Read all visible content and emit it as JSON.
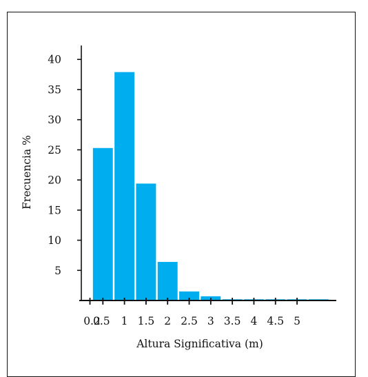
{
  "chart_data": {
    "type": "bar",
    "xlabel": "Altura Significativa (m)",
    "ylabel": "Frecuencia %",
    "x_tick_labels": [
      "0.2",
      "0.5",
      "1",
      "1.5",
      "2",
      "2.5",
      "3",
      "3.5",
      "4",
      "4.5",
      "5"
    ],
    "y_ticks": [
      5,
      10,
      15,
      20,
      25,
      30,
      35,
      40
    ],
    "ylim": [
      0,
      43
    ],
    "xlim": [
      0,
      5.75
    ],
    "bin_width": 0.5,
    "bars": [
      {
        "bin": [
          0.25,
          0.75
        ],
        "value": 25.3
      },
      {
        "bin": [
          0.75,
          1.25
        ],
        "value": 37.9
      },
      {
        "bin": [
          1.25,
          1.75
        ],
        "value": 19.4
      },
      {
        "bin": [
          1.75,
          2.25
        ],
        "value": 6.4
      },
      {
        "bin": [
          2.25,
          2.75
        ],
        "value": 1.5
      },
      {
        "bin": [
          2.75,
          3.25
        ],
        "value": 0.7
      },
      {
        "bin": [
          3.25,
          3.75
        ],
        "value": 0.2
      },
      {
        "bin": [
          3.75,
          4.25
        ],
        "value": 0.2
      },
      {
        "bin": [
          4.25,
          4.75
        ],
        "value": 0.2
      },
      {
        "bin": [
          4.75,
          5.25
        ],
        "value": 0.2
      },
      {
        "bin": [
          5.25,
          5.75
        ],
        "value": 0.2
      }
    ],
    "bar_color": "#00aeef",
    "grid": false,
    "legend": "none"
  }
}
